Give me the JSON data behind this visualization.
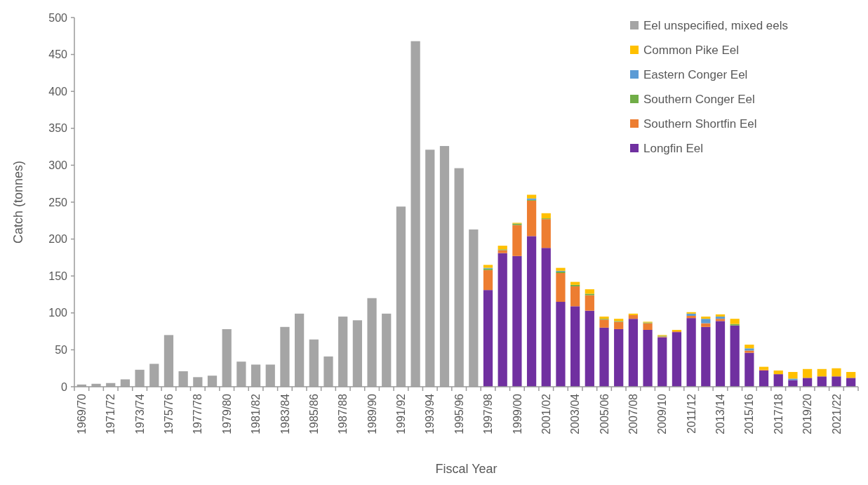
{
  "chart_data": {
    "type": "bar",
    "stacked": true,
    "xlabel": "Fiscal Year",
    "ylabel": "Catch (tonnes)",
    "ylim": [
      0,
      500
    ],
    "yticks": [
      0,
      50,
      100,
      150,
      200,
      250,
      300,
      350,
      400,
      450,
      500
    ],
    "grid": false,
    "legend": "top right",
    "categories": [
      "1969/70",
      null,
      "1971/72",
      null,
      "1973/74",
      null,
      "1975/76",
      null,
      "1977/78",
      null,
      "1979/80",
      null,
      "1981/82",
      null,
      "1983/84",
      null,
      "1985/86",
      null,
      "1987/88",
      null,
      "1989/90",
      null,
      "1991/92",
      null,
      "1993/94",
      null,
      "1995/96",
      null,
      "1997/98",
      null,
      "1999/00",
      null,
      "2001/02",
      null,
      "2003/04",
      null,
      "2005/06",
      null,
      "2007/08",
      null,
      "2009/10",
      null,
      "2011/12",
      null,
      "2013/14",
      null,
      "2015/16",
      null,
      "2017/18",
      null,
      "2019/20",
      null,
      "2021/22",
      null
    ],
    "series": [
      {
        "name": "Longfin Eel",
        "color": "#7030a0",
        "values": [
          null,
          null,
          null,
          null,
          null,
          null,
          null,
          null,
          null,
          null,
          null,
          null,
          null,
          null,
          null,
          null,
          null,
          null,
          null,
          null,
          null,
          null,
          null,
          null,
          null,
          null,
          null,
          null,
          131,
          181,
          177,
          204,
          188,
          115,
          109,
          103,
          80,
          78,
          92,
          77,
          67,
          74,
          93,
          81,
          89,
          83,
          46,
          22,
          17,
          9,
          12,
          14,
          14,
          12
        ]
      },
      {
        "name": "Southern Shortfin Eel",
        "color": "#ed7d31",
        "values": [
          null,
          null,
          null,
          null,
          null,
          null,
          null,
          null,
          null,
          null,
          null,
          null,
          null,
          null,
          null,
          null,
          null,
          null,
          null,
          null,
          null,
          null,
          null,
          null,
          null,
          null,
          null,
          null,
          27,
          4,
          42,
          48,
          39,
          39,
          27,
          21,
          11,
          10,
          5,
          9,
          1,
          1,
          3,
          5,
          3,
          0,
          3,
          1,
          0,
          0,
          0,
          0,
          0,
          0
        ]
      },
      {
        "name": "Southern Conger Eel",
        "color": "#70ad47",
        "values": [
          null,
          null,
          null,
          null,
          null,
          null,
          null,
          null,
          null,
          null,
          null,
          null,
          null,
          null,
          null,
          null,
          null,
          null,
          null,
          null,
          null,
          null,
          null,
          null,
          null,
          null,
          null,
          null,
          2,
          1,
          2,
          1,
          1,
          2,
          2,
          2,
          1,
          1,
          0,
          1,
          1,
          0,
          0,
          0,
          0,
          2,
          0,
          0,
          0,
          0,
          0,
          0,
          0,
          0
        ]
      },
      {
        "name": "Eastern Conger Eel",
        "color": "#5b9bd5",
        "values": [
          null,
          null,
          null,
          null,
          null,
          null,
          null,
          null,
          null,
          null,
          null,
          null,
          null,
          null,
          null,
          null,
          null,
          null,
          null,
          null,
          null,
          null,
          null,
          null,
          null,
          null,
          null,
          null,
          1,
          0,
          0,
          2,
          0,
          1,
          0,
          0,
          0,
          0,
          0,
          0,
          0,
          0,
          3,
          6,
          3,
          0,
          3,
          0,
          0,
          2,
          0,
          0,
          0,
          0
        ]
      },
      {
        "name": "Common Pike Eel",
        "color": "#ffc000",
        "values": [
          null,
          null,
          null,
          null,
          null,
          null,
          null,
          null,
          null,
          null,
          null,
          null,
          null,
          null,
          null,
          null,
          null,
          null,
          null,
          null,
          null,
          null,
          null,
          null,
          null,
          null,
          null,
          null,
          4,
          5,
          1,
          5,
          7,
          4,
          4,
          6,
          3,
          3,
          2,
          1,
          1,
          2,
          2,
          3,
          3,
          7,
          5,
          4,
          5,
          9,
          12,
          10,
          11,
          8
        ]
      },
      {
        "name": "Eel unspecified, mixed eels",
        "color": "#a5a5a5",
        "values": [
          3,
          4,
          5,
          10,
          23,
          31,
          70,
          21,
          13,
          15,
          78,
          34,
          30,
          30,
          81,
          99,
          64,
          41,
          95,
          90,
          120,
          99,
          244,
          468,
          321,
          326,
          296,
          213,
          null,
          null,
          null,
          null,
          null,
          null,
          null,
          null,
          null,
          null,
          null,
          null,
          null,
          null,
          null,
          null,
          null,
          null,
          null,
          null,
          null,
          null,
          null,
          null,
          null,
          null
        ]
      }
    ]
  }
}
